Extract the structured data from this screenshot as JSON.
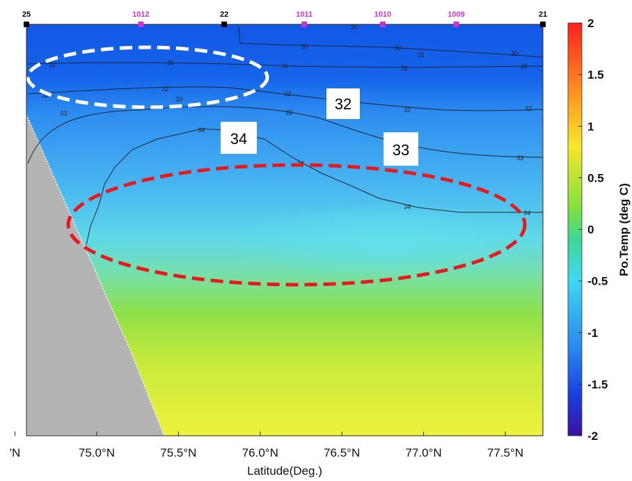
{
  "chart_data": {
    "type": "heatmap",
    "title": "",
    "xlabel": "Latitude(Deg.)",
    "colorbar_label": "Po.Temp (deg C)",
    "colorbar_range": [
      -2,
      2
    ],
    "colorbar_ticks": [
      "2",
      "1.5",
      "1",
      "0.5",
      "0",
      "-0.5",
      "-1",
      "-1.5",
      "-2"
    ],
    "colorbar_tick_values": [
      2,
      1.5,
      1,
      0.5,
      0,
      -0.5,
      -1,
      -1.5,
      -2
    ],
    "x_ticks": [
      {
        "value": 74.5,
        "label": "'N"
      },
      {
        "value": 75.0,
        "label": "75.0°N"
      },
      {
        "value": 75.5,
        "label": "75.5°N"
      },
      {
        "value": 76.0,
        "label": "76.0°N"
      },
      {
        "value": 76.5,
        "label": "76.5°N"
      },
      {
        "value": 77.0,
        "label": "77.0°N"
      },
      {
        "value": 77.5,
        "label": "77.5°N"
      }
    ],
    "xlim": [
      74.57,
      77.73
    ],
    "stations": [
      {
        "label": "25",
        "lat": 74.57,
        "color": "#000000"
      },
      {
        "label": "1012",
        "lat": 75.27,
        "color": "#cc33cc"
      },
      {
        "label": "22",
        "lat": 75.78,
        "color": "#000000"
      },
      {
        "label": "1011",
        "lat": 76.27,
        "color": "#cc33cc"
      },
      {
        "label": "1010",
        "lat": 76.75,
        "color": "#cc33cc"
      },
      {
        "label": "1009",
        "lat": 77.2,
        "color": "#cc33cc"
      },
      {
        "label": "21",
        "lat": 77.73,
        "color": "#000000"
      }
    ],
    "salinity_contour_labels": [
      "30",
      "30",
      "30",
      "30",
      "31",
      "31",
      "31",
      "31",
      "31",
      "31",
      "32",
      "32",
      "32",
      "32",
      "32",
      "33",
      "33",
      "33",
      "33",
      "34",
      "34",
      "34",
      "34"
    ],
    "annotations": [
      "32",
      "34",
      "33"
    ],
    "highlight_ellipses": [
      {
        "style": "white-dashed"
      },
      {
        "style": "red-dashed"
      }
    ]
  }
}
